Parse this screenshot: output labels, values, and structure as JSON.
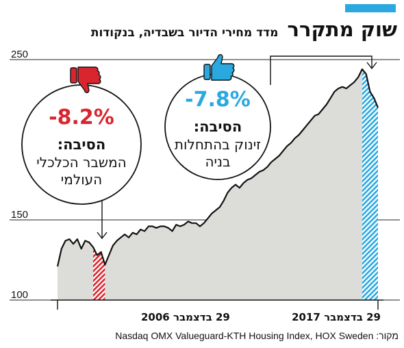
{
  "header": {
    "title": "שוק מתקרר",
    "subtitle": "מדד מחירי הדיור בשבדיה, בנקודות"
  },
  "colors": {
    "accent": "#2aa8e0",
    "negative": "#d9262e",
    "area_fill": "#dcdcd8"
  },
  "chart_data": {
    "type": "area",
    "ylim": [
      100,
      250
    ],
    "yticks": [
      100,
      150,
      250
    ],
    "x_start_label": "29 בדצמבר 2006",
    "x_end_label": "29 בדצמבר 2017",
    "series": [
      {
        "values": [
          121,
          132,
          137,
          138,
          135,
          138,
          132,
          137,
          136,
          133,
          128,
          130,
          122,
          128,
          134,
          137,
          139,
          141,
          139,
          142,
          141,
          144,
          143,
          146,
          146,
          145,
          146,
          146,
          145,
          143,
          147,
          146,
          147,
          149,
          148,
          148,
          146,
          148,
          151,
          154,
          156,
          158,
          162,
          167,
          170,
          172,
          170,
          173,
          175,
          176,
          178,
          180,
          181,
          183,
          186,
          188,
          190,
          193,
          196,
          198,
          201,
          203,
          206,
          209,
          212,
          215,
          216,
          219,
          222,
          226,
          230,
          232,
          233,
          232,
          234,
          236,
          239,
          244,
          241,
          230,
          226,
          220
        ]
      }
    ],
    "annotations": [
      {
        "id": "crisis",
        "value": "-8.2%",
        "label": "הסיבה:",
        "lines": [
          "המשבר הכלכלי",
          "העולמי"
        ],
        "icon": "thumbs-down-icon"
      },
      {
        "id": "building",
        "value": "-7.8%",
        "label": "הסיבה:",
        "lines": [
          "זינוק בהתחלות",
          "בניה"
        ],
        "icon": "thumbs-up-icon"
      }
    ]
  },
  "footer": {
    "source": "מקור: Nasdaq OMX Valueguard-KTH Housing Index, HOX Sweden"
  }
}
